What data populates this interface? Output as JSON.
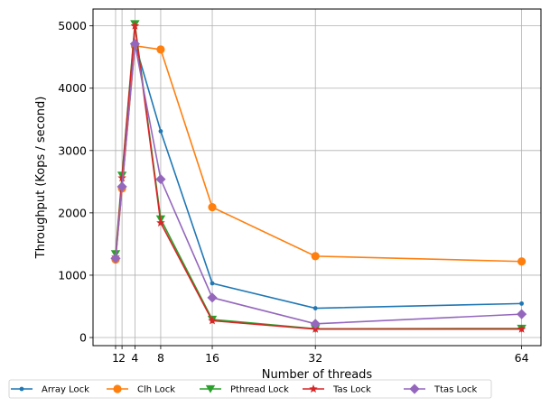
{
  "chart_data": {
    "type": "line",
    "xlabel": "Number of threads",
    "ylabel": "Throughput (Kops / second)",
    "x": [
      1,
      2,
      4,
      8,
      16,
      32,
      64
    ],
    "xticks": [
      1,
      2,
      4,
      8,
      16,
      32,
      64
    ],
    "xtick_labels": [
      "1",
      "2",
      "4",
      "8",
      "16",
      "32",
      "64"
    ],
    "yticks": [
      0,
      1000,
      2000,
      3000,
      4000,
      5000
    ],
    "yticks_labels": [
      "0",
      "1000",
      "2000",
      "3000",
      "4000",
      "5000"
    ],
    "xlim": [
      -2.5,
      67
    ],
    "ylim": [
      -130,
      5270
    ],
    "grid": true,
    "legend_position": "bottom, below plot, single row",
    "series": [
      {
        "name": "Array Lock",
        "color": "#1f77b4",
        "marker": "point",
        "values": [
          1270,
          2400,
          4720,
          3310,
          870,
          470,
          545
        ]
      },
      {
        "name": "Clh Lock",
        "color": "#ff7f0e",
        "marker": "circle",
        "values": [
          1250,
          2390,
          4680,
          4620,
          2090,
          1305,
          1220
        ]
      },
      {
        "name": "Pthread Lock",
        "color": "#2ca02c",
        "marker": "triangle-down",
        "values": [
          1340,
          2600,
          5030,
          1900,
          290,
          140,
          145
        ]
      },
      {
        "name": "Tas Lock",
        "color": "#d62728",
        "marker": "star",
        "values": [
          1290,
          2560,
          5000,
          1840,
          270,
          135,
          135
        ]
      },
      {
        "name": "Ttas Lock",
        "color": "#9467bd",
        "marker": "diamond",
        "values": [
          1270,
          2420,
          4710,
          2540,
          640,
          220,
          375
        ]
      }
    ]
  }
}
